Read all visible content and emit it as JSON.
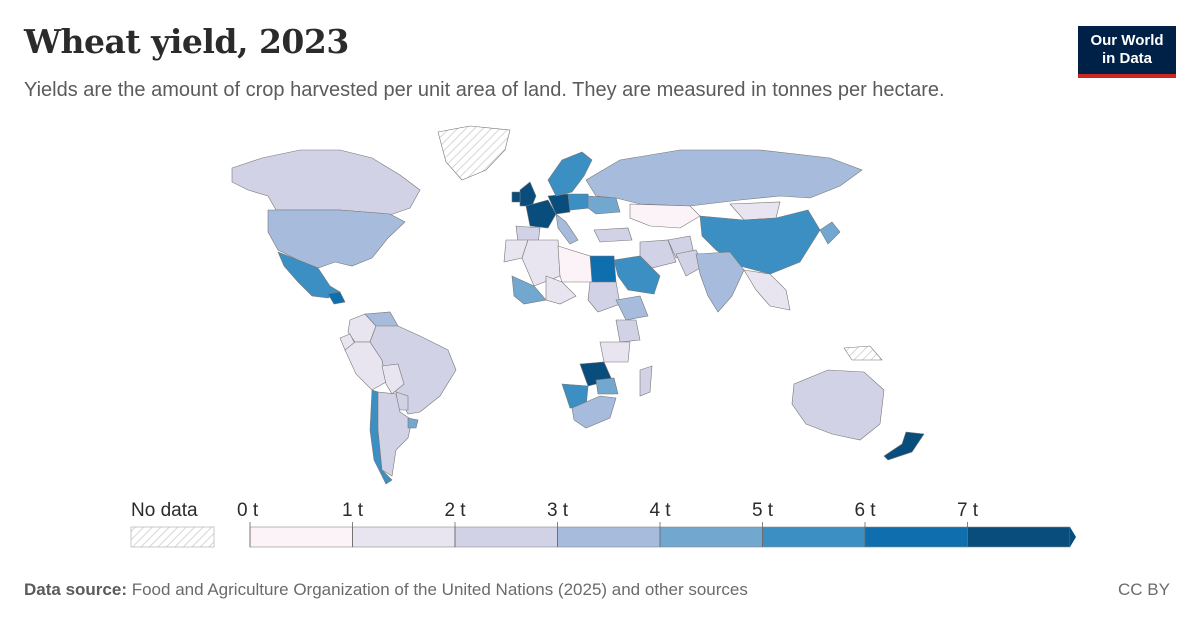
{
  "header": {
    "title": "Wheat yield, 2023",
    "subtitle": "Yields are the amount of crop harvested per unit area of land. They are measured in tonnes per hectare."
  },
  "logo": {
    "line1": "Our World",
    "line2": "in Data"
  },
  "legend": {
    "no_data_label": "No data",
    "ticks": [
      "0 t",
      "1 t",
      "2 t",
      "3 t",
      "4 t",
      "5 t",
      "6 t",
      "7 t"
    ],
    "colors": [
      "#fcf3f8",
      "#e8e4f0",
      "#d2d2e6",
      "#a7bcdc",
      "#72a7d0",
      "#3b8fc3",
      "#0f6ead",
      "#084d7c"
    ]
  },
  "chart_data": {
    "type": "choropleth",
    "title": "Wheat yield, 2023",
    "unit": "tonnes per hectare",
    "bins": [
      0,
      1,
      2,
      3,
      4,
      5,
      6,
      7
    ],
    "regions": [
      {
        "name": "Canada",
        "value": 2.5
      },
      {
        "name": "United States",
        "value": 3.4
      },
      {
        "name": "Mexico",
        "value": 5.6
      },
      {
        "name": "Guatemala",
        "value": 6.5
      },
      {
        "name": "Colombia",
        "value": 1.8
      },
      {
        "name": "Venezuela",
        "value": 3.5
      },
      {
        "name": "Ecuador",
        "value": 1.0
      },
      {
        "name": "Peru",
        "value": 1.5
      },
      {
        "name": "Brazil",
        "value": 2.7
      },
      {
        "name": "Bolivia",
        "value": 1.3
      },
      {
        "name": "Paraguay",
        "value": 2.7
      },
      {
        "name": "Chile",
        "value": 5.6
      },
      {
        "name": "Argentina",
        "value": 2.5
      },
      {
        "name": "Uruguay",
        "value": 4.5
      },
      {
        "name": "Greenland",
        "value": null
      },
      {
        "name": "United Kingdom",
        "value": 8.6
      },
      {
        "name": "Ireland",
        "value": 9.5
      },
      {
        "name": "France",
        "value": 7.3
      },
      {
        "name": "Germany",
        "value": 7.4
      },
      {
        "name": "Spain",
        "value": 2.5
      },
      {
        "name": "Italy",
        "value": 3.5
      },
      {
        "name": "Scandinavia",
        "value": 5.0
      },
      {
        "name": "Poland",
        "value": 5.0
      },
      {
        "name": "Ukraine",
        "value": 4.5
      },
      {
        "name": "Russia",
        "value": 3.2
      },
      {
        "name": "Kazakhstan",
        "value": 0.9
      },
      {
        "name": "Mongolia",
        "value": 1.5
      },
      {
        "name": "China",
        "value": 5.8
      },
      {
        "name": "Japan",
        "value": 4.0
      },
      {
        "name": "Turkey",
        "value": 2.8
      },
      {
        "name": "Iran",
        "value": 2.0
      },
      {
        "name": "Afghanistan",
        "value": 2.2
      },
      {
        "name": "Pakistan",
        "value": 2.9
      },
      {
        "name": "India",
        "value": 3.5
      },
      {
        "name": "Southeast Asia",
        "value": 1.5
      },
      {
        "name": "Saudi Arabia",
        "value": 5.5
      },
      {
        "name": "Egypt",
        "value": 6.6
      },
      {
        "name": "Morocco",
        "value": 1.3
      },
      {
        "name": "Algeria",
        "value": 1.5
      },
      {
        "name": "Libya",
        "value": 0.8
      },
      {
        "name": "Mali",
        "value": 4.2
      },
      {
        "name": "Niger",
        "value": 1.5
      },
      {
        "name": "Sudan",
        "value": 2.4
      },
      {
        "name": "Ethiopia",
        "value": 3.0
      },
      {
        "name": "Kenya",
        "value": 2.5
      },
      {
        "name": "Tanzania",
        "value": 1.5
      },
      {
        "name": "Zambia",
        "value": 7.0
      },
      {
        "name": "Zimbabwe",
        "value": 4.5
      },
      {
        "name": "Namibia",
        "value": 5.0
      },
      {
        "name": "South Africa",
        "value": 3.6
      },
      {
        "name": "Madagascar",
        "value": 2.5
      },
      {
        "name": "Australia",
        "value": 2.9
      },
      {
        "name": "New Zealand",
        "value": 8.5
      },
      {
        "name": "Papua New Guinea",
        "value": null
      }
    ]
  },
  "footer": {
    "source_label": "Data source:",
    "source_text": "Food and Agriculture Organization of the United Nations (2025) and other sources",
    "license": "CC BY"
  }
}
